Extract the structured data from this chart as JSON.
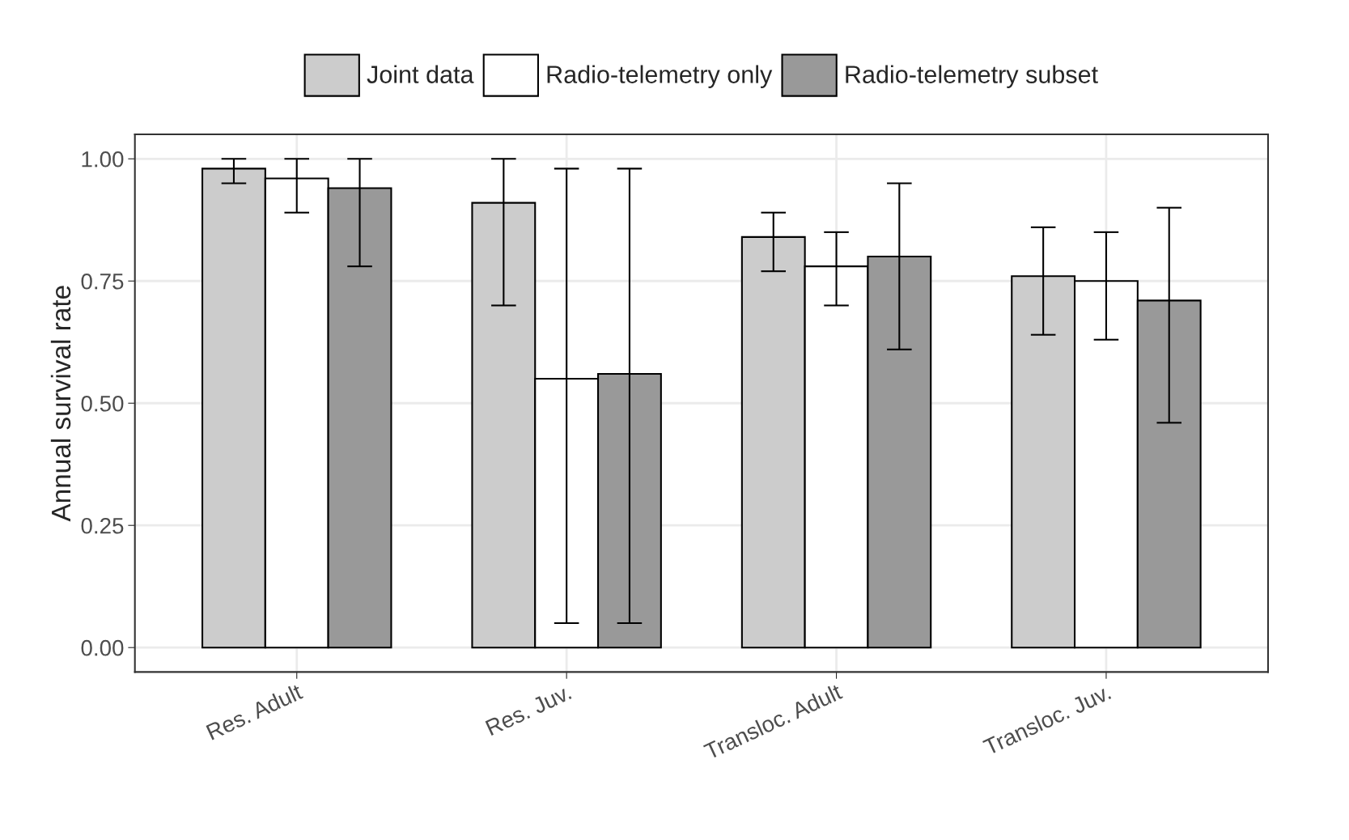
{
  "chart_data": {
    "type": "bar",
    "ylabel": "Annual survival rate",
    "categories": [
      "Res. Adult",
      "Res. Juv.",
      "Transloc. Adult",
      "Transloc. Juv."
    ],
    "series": [
      {
        "name": "Joint data",
        "color": "#cccccc",
        "values": [
          0.98,
          0.91,
          0.84,
          0.76
        ],
        "errors": [
          [
            0.95,
            1.0
          ],
          [
            0.7,
            1.0
          ],
          [
            0.77,
            0.89
          ],
          [
            0.64,
            0.86
          ]
        ]
      },
      {
        "name": "Radio-telemetry only",
        "color": "#ffffff",
        "values": [
          0.96,
          0.55,
          0.78,
          0.75
        ],
        "errors": [
          [
            0.89,
            1.0
          ],
          [
            0.05,
            0.98
          ],
          [
            0.7,
            0.85
          ],
          [
            0.63,
            0.85
          ]
        ]
      },
      {
        "name": "Radio-telemetry subset",
        "color": "#999999",
        "values": [
          0.94,
          0.56,
          0.8,
          0.71
        ],
        "errors": [
          [
            0.78,
            1.0
          ],
          [
            0.05,
            0.98
          ],
          [
            0.61,
            0.95
          ],
          [
            0.46,
            0.9
          ]
        ]
      }
    ],
    "ylim": [
      -0.05,
      1.05
    ],
    "yticks": [
      {
        "value": 0,
        "label": "0.00"
      },
      {
        "value": 0.25,
        "label": "0.25"
      },
      {
        "value": 0.5,
        "label": "0.50"
      },
      {
        "value": 0.75,
        "label": "0.75"
      },
      {
        "value": 1,
        "label": "1.00"
      }
    ],
    "grid": true,
    "legend": "top"
  }
}
